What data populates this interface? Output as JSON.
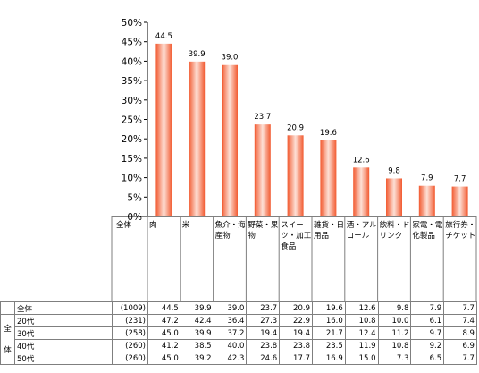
{
  "chart_data": {
    "type": "bar",
    "categories": [
      "肉",
      "米",
      "魚介・海産物",
      "野菜・果物",
      "スイーツ・加工食品",
      "雑貨・日用品",
      "酒・アルコール",
      "飲料・ドリンク",
      "家電・電化製品",
      "旅行券・チケット"
    ],
    "values": [
      44.5,
      39.9,
      39.0,
      23.7,
      20.9,
      19.6,
      12.6,
      9.8,
      7.9,
      7.7
    ],
    "ylim": [
      0,
      50
    ],
    "yticks": [
      "0%",
      "5%",
      "10%",
      "15%",
      "20%",
      "25%",
      "30%",
      "35%",
      "40%",
      "45%",
      "50%"
    ],
    "bar_color": "#f5623a",
    "corner_label": "全体",
    "xlabel": "",
    "ylabel": ""
  },
  "table": {
    "group_label": "全体",
    "group_label_chars": [
      "全",
      "体"
    ],
    "rows": [
      {
        "label": "全体",
        "n": "(1009)",
        "values": [
          "44.5",
          "39.9",
          "39.0",
          "23.7",
          "20.9",
          "19.6",
          "12.6",
          "9.8",
          "7.9",
          "7.7"
        ]
      },
      {
        "label": "20代",
        "n": "(231)",
        "values": [
          "47.2",
          "42.4",
          "36.4",
          "27.3",
          "22.9",
          "16.0",
          "10.8",
          "10.0",
          "6.1",
          "7.4"
        ]
      },
      {
        "label": "30代",
        "n": "(258)",
        "values": [
          "45.0",
          "39.9",
          "37.2",
          "19.4",
          "19.4",
          "21.7",
          "12.4",
          "11.2",
          "9.7",
          "8.9"
        ]
      },
      {
        "label": "40代",
        "n": "(260)",
        "values": [
          "41.2",
          "38.5",
          "40.0",
          "23.8",
          "23.8",
          "23.5",
          "11.9",
          "10.8",
          "9.2",
          "6.9"
        ]
      },
      {
        "label": "50代",
        "n": "(260)",
        "values": [
          "45.0",
          "39.2",
          "42.3",
          "24.6",
          "17.7",
          "16.9",
          "15.0",
          "7.3",
          "6.5",
          "7.7"
        ]
      }
    ]
  }
}
